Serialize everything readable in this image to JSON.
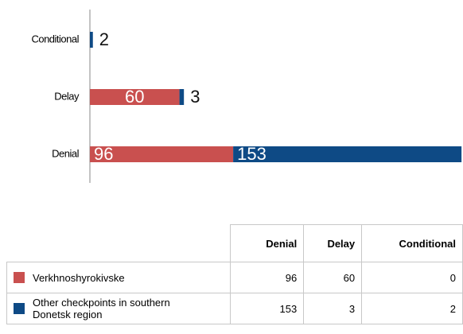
{
  "chart_data": {
    "type": "stacked-bar-horizontal",
    "categories": [
      "Conditional",
      "Delay",
      "Denial"
    ],
    "series": [
      {
        "name": "Verkhnoshyrokivske",
        "color": "#c9504f",
        "values": [
          0,
          60,
          96
        ]
      },
      {
        "name": "Other checkpoints in southern Donetsk region",
        "color": "#0e4a85",
        "values": [
          2,
          3,
          153
        ]
      }
    ],
    "xlim": [
      0,
      250
    ]
  }
}
